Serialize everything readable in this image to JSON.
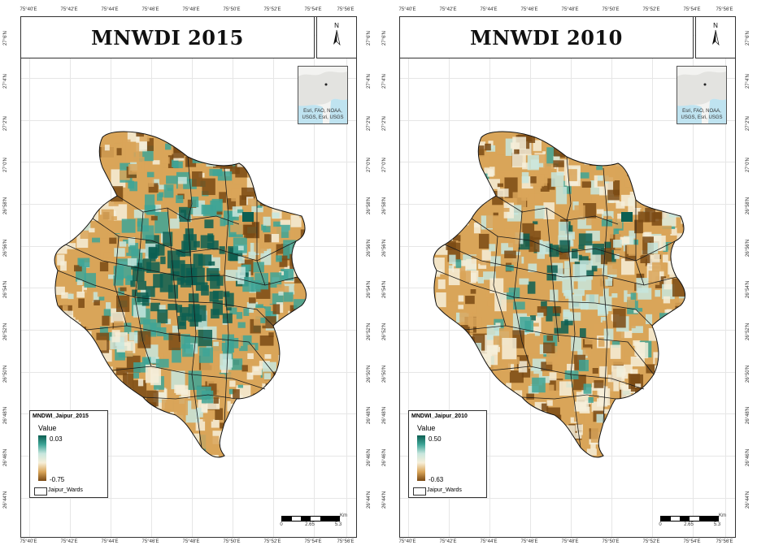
{
  "lon_ticks": [
    "75°40'E",
    "75°42'E",
    "75°44'E",
    "75°46'E",
    "75°48'E",
    "75°50'E",
    "75°52'E",
    "75°54'E",
    "75°56'E"
  ],
  "lat_ticks": [
    "27°4'N",
    "27°2'N",
    "27°0'N",
    "26°58'N",
    "26°56'N",
    "26°54'N",
    "26°52'N",
    "26°50'N",
    "26°48'N",
    "26°46'N",
    "26°44'N",
    "27°6'N"
  ],
  "panels": [
    {
      "title": "MNWDI 2015",
      "north_label": "N",
      "inset_attribution": "Esri, FAO, NOAA, USGS, Esri, USGS",
      "legend": {
        "title": "MNDWI_Jaipur_2015",
        "value_label": "Value",
        "max": "0.03",
        "min": "-0.75",
        "wards_label": "Jaipur_Wards"
      },
      "scale": {
        "ticks": [
          "0",
          "2.65",
          "5.3"
        ],
        "unit": "Km"
      },
      "water_share": 0.55
    },
    {
      "title": "MNWDI 2010",
      "north_label": "N",
      "inset_attribution": "Esri, FAO, NOAA, USGS, Esri, USGS",
      "legend": {
        "title": "MNDWI_Jaipur_2010",
        "value_label": "Value",
        "max": "0.50",
        "min": "-0.63",
        "wards_label": "Jaipur_Wards"
      },
      "scale": {
        "ticks": [
          "0",
          "2.65",
          "5.3"
        ],
        "unit": "Km"
      },
      "water_share": 0.2
    }
  ],
  "colors": {
    "water_dark": "#0c5f52",
    "water_mid": "#3ea597",
    "water_light": "#c7e6de",
    "neutral": "#f6efd9",
    "dry_mid": "#d9a559",
    "dry_dark": "#7a4a14"
  }
}
